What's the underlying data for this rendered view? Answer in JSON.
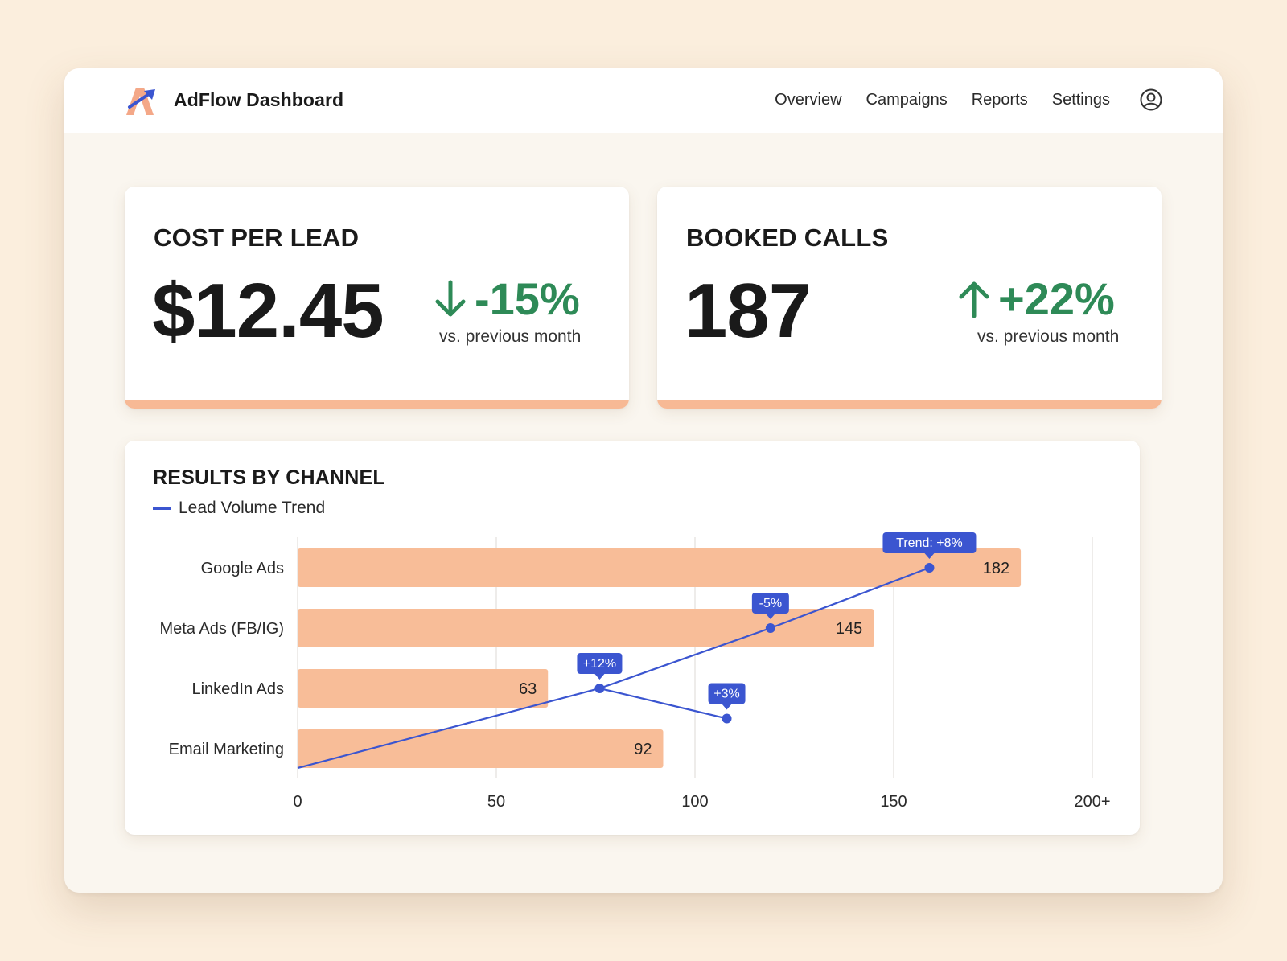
{
  "app": {
    "title": "AdFlow Dashboard",
    "nav": [
      "Overview",
      "Campaigns",
      "Reports",
      "Settings"
    ],
    "icons": {
      "logo": "adflow-logo",
      "user": "user-circle-icon"
    }
  },
  "kpis": {
    "cost_per_lead": {
      "title": "COST PER LEAD",
      "value": "$12.45",
      "change": "-15%",
      "direction": "down",
      "sub": "vs. previous month"
    },
    "booked_calls": {
      "title": "BOOKED CALLS",
      "value": "187",
      "change": "+22%",
      "direction": "up",
      "sub": "vs. previous month"
    }
  },
  "colors": {
    "bar": "#f8bd98",
    "trend": "#3b55d0",
    "positive": "#2e8a57",
    "accent": "#f7b995"
  },
  "chart": {
    "title": "RESULTS BY CHANNEL",
    "legend": "Lead Volume Trend"
  },
  "chart_data": {
    "type": "bar",
    "orientation": "horizontal",
    "categories": [
      "Google Ads",
      "Meta Ads (FB/IG)",
      "LinkedIn Ads",
      "Email Marketing"
    ],
    "values": [
      182,
      145,
      63,
      92
    ],
    "xlim": [
      0,
      200
    ],
    "x_ticks": [
      "0",
      "50",
      "100",
      "150",
      "200+"
    ],
    "grid": true,
    "trend_line": {
      "name": "Lead Volume Trend",
      "points": [
        {
          "x": 0,
          "category": "Email Marketing",
          "label": ""
        },
        {
          "x": 76,
          "category": "LinkedIn Ads",
          "label": "+12%"
        },
        {
          "x": 119,
          "category": "Meta Ads (FB/IG)",
          "label": "-5%"
        },
        {
          "x": 159,
          "category": "Google Ads",
          "label": "Trend: +8%"
        }
      ],
      "branch": {
        "from_x": 76,
        "to_x": 108,
        "between": [
          "LinkedIn Ads",
          "Email Marketing"
        ],
        "label": "+3%"
      }
    }
  }
}
